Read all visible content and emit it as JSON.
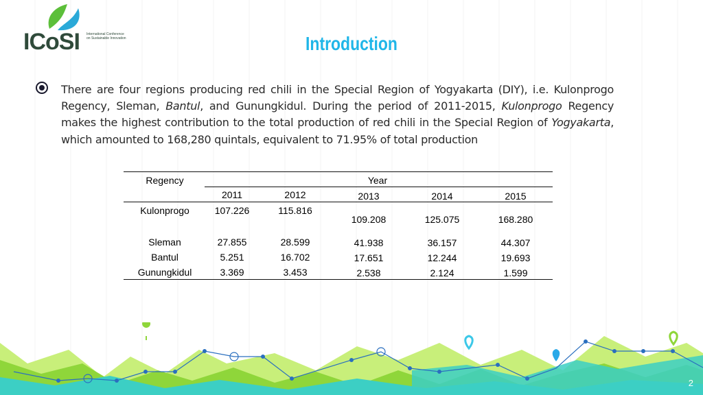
{
  "logo": {
    "word": "ICoSI",
    "sub": "International Conference on Sustainable Innovation"
  },
  "title": "Introduction",
  "paragraph": {
    "p1": "There are four regions producing red chili in the Special Region of Yogyakarta (DIY), i.e. Kulonprogo Regency, Sleman, ",
    "i1": "Bantul",
    "p2": ", and Gunungkidul. During the period of 2011-2015, ",
    "i2": "Kulonprogo",
    "p3": " Regency makes the highest contribution to the total production of red chili in the Special Region of ",
    "i3": "Yogyakarta",
    "p4": ", which amounted to 168,280 quintals, equivalent to 71.95% of total production"
  },
  "table": {
    "header_regency": "Regency",
    "header_year": "Year",
    "years": [
      "2011",
      "2012",
      "2013",
      "2014",
      "2015"
    ],
    "rows": [
      {
        "regency": "Kulonprogo",
        "values": [
          "107.226",
          "115.816",
          "109.208",
          "125.075",
          "168.280"
        ]
      },
      {
        "regency": "Sleman",
        "values": [
          "27.855",
          "28.599",
          "41.938",
          "36.157",
          "44.307"
        ]
      },
      {
        "regency": "Bantul",
        "values": [
          "5.251",
          "16.702",
          "17.651",
          "12.244",
          "19.693"
        ]
      },
      {
        "regency": "Gunungkidul",
        "values": [
          "3.369",
          "3.453",
          "2.538",
          "2.124",
          "1.599"
        ]
      }
    ]
  },
  "page_number": "2",
  "colors": {
    "title": "#1fb6e8",
    "lime": "#a6d63a",
    "teal": "#3cc8c8",
    "blue": "#2a8fd8"
  }
}
